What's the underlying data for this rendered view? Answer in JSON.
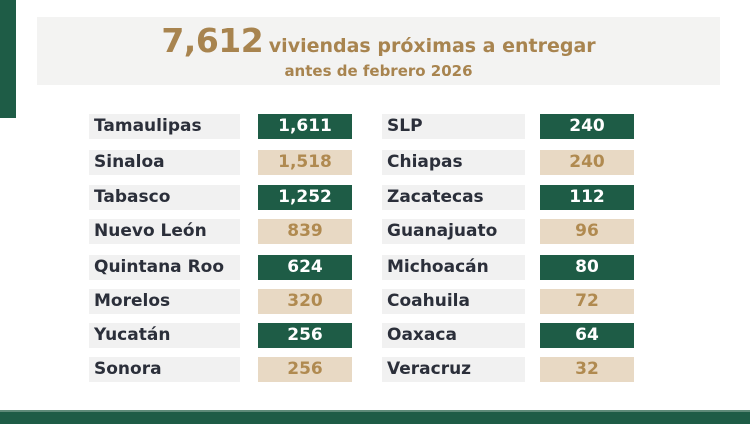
{
  "title": {
    "number": "7,612",
    "text": "viviendas próximas a entregar",
    "subtitle": "antes de febrero 2026"
  },
  "colors": {
    "green": "#1e5c46",
    "tan": "#e8d9c4",
    "gold_text": "#a8844f"
  },
  "left": [
    {
      "state": "Tamaulipas",
      "value": "1,611",
      "style": "green"
    },
    {
      "state": "Sinaloa",
      "value": "1,518",
      "style": "tan"
    },
    {
      "state": "Tabasco",
      "value": "1,252",
      "style": "green"
    },
    {
      "state": "Nuevo León",
      "value": "839",
      "style": "tan"
    },
    {
      "state": "Quintana Roo",
      "value": "624",
      "style": "green"
    },
    {
      "state": "Morelos",
      "value": "320",
      "style": "tan"
    },
    {
      "state": "Yucatán",
      "value": "256",
      "style": "green"
    },
    {
      "state": "Sonora",
      "value": "256",
      "style": "tan"
    }
  ],
  "right": [
    {
      "state": "SLP",
      "value": "240",
      "style": "green"
    },
    {
      "state": "Chiapas",
      "value": "240",
      "style": "tan"
    },
    {
      "state": "Zacatecas",
      "value": "112",
      "style": "green"
    },
    {
      "state": "Guanajuato",
      "value": "96",
      "style": "tan"
    },
    {
      "state": "Michoacán",
      "value": "80",
      "style": "green"
    },
    {
      "state": "Coahuila",
      "value": "72",
      "style": "tan"
    },
    {
      "state": "Oaxaca",
      "value": "64",
      "style": "green"
    },
    {
      "state": "Veracruz",
      "value": "32",
      "style": "tan"
    }
  ]
}
